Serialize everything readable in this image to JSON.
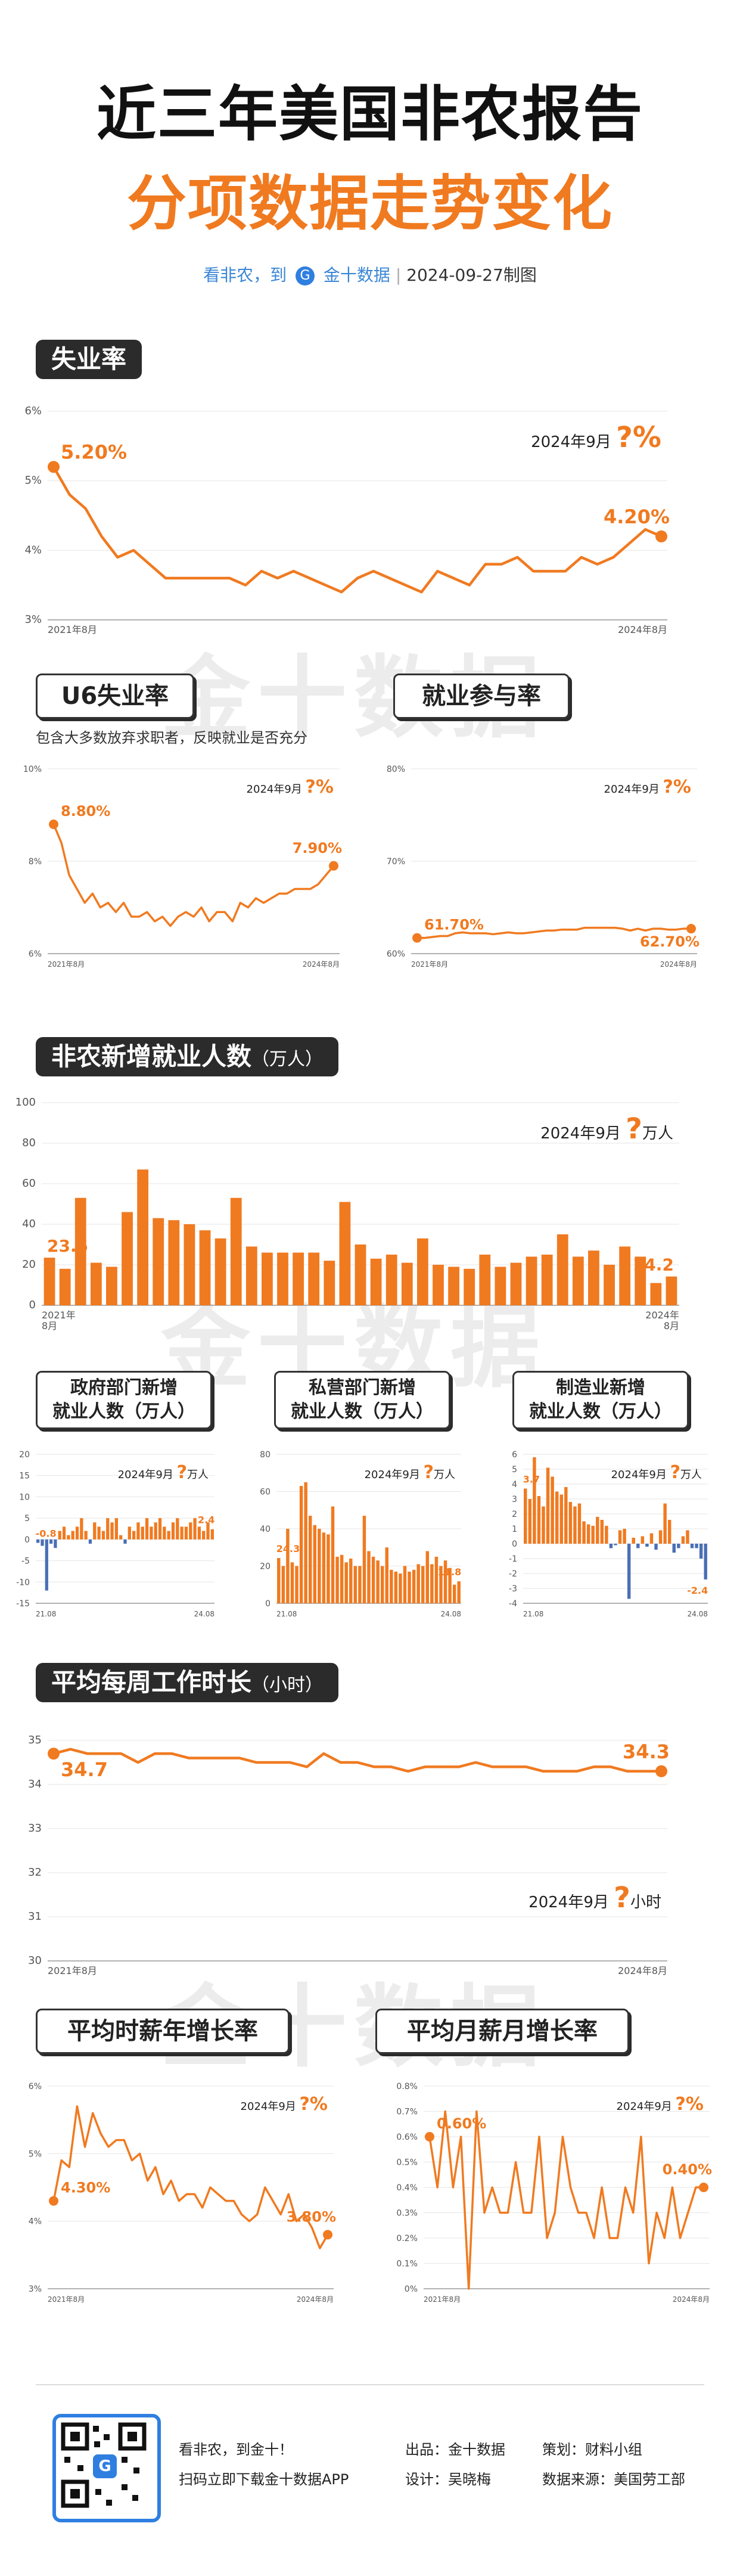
{
  "header": {
    "title_line1": "近三年美国非农报告",
    "title_line2": "分项数据走势变化",
    "sub_left": "看非农，到",
    "sub_brand": "金十数据",
    "sub_date": "2024-09-27制图"
  },
  "watermark": "金十数据",
  "colors": {
    "accent": "#f07a20",
    "blue": "#4a6fb5",
    "dark": "#2b2b2b"
  },
  "sections": {
    "unemployment": "失业率",
    "u6": "U6失业率",
    "u6_note": "包含大多数放弃求职者，反映就业是否充分",
    "participation": "就业参与率",
    "nfp": "非农新增就业人数",
    "nfp_unit": "（万人）",
    "gov": "政府部门新增\n就业人数（万人）",
    "private": "私营部门新增\n就业人数（万人）",
    "manufacturing": "制造业新增\n就业人数（万人）",
    "hours": "平均每周工作时长",
    "hours_unit": "（小时）",
    "wage_yoy": "平均时薪年增长率",
    "wage_mom": "平均月薪月增长率"
  },
  "chart_data": [
    {
      "id": "unemployment",
      "type": "line",
      "ylim": [
        3,
        6
      ],
      "yticks": [
        "6%",
        "5%",
        "4%",
        "3%"
      ],
      "xstart": "2021年8月",
      "xend": "2024年8月",
      "values": [
        5.2,
        4.8,
        4.6,
        4.2,
        3.9,
        4.0,
        3.8,
        3.6,
        3.6,
        3.6,
        3.6,
        3.6,
        3.5,
        3.7,
        3.6,
        3.7,
        3.6,
        3.5,
        3.4,
        3.6,
        3.7,
        3.6,
        3.5,
        3.4,
        3.7,
        3.6,
        3.5,
        3.8,
        3.8,
        3.9,
        3.7,
        3.7,
        3.7,
        3.9,
        3.8,
        3.9,
        4.1,
        4.3,
        4.2
      ],
      "first_label": "5.20%",
      "last_label": "4.20%",
      "forecast_label": "2024年9月",
      "forecast_value": "?%"
    },
    {
      "id": "u6",
      "type": "line",
      "ylim": [
        6,
        10
      ],
      "yticks": [
        "10%",
        "8%",
        "6%"
      ],
      "xstart": "2021年8月",
      "xend": "2024年8月",
      "values": [
        8.8,
        8.4,
        7.7,
        7.4,
        7.1,
        7.3,
        7.0,
        7.1,
        6.9,
        7.1,
        6.8,
        6.8,
        6.9,
        6.7,
        6.8,
        6.6,
        6.8,
        6.9,
        6.8,
        7.0,
        6.7,
        6.9,
        6.9,
        6.7,
        7.1,
        7.0,
        7.2,
        7.1,
        7.2,
        7.3,
        7.3,
        7.4,
        7.4,
        7.4,
        7.5,
        7.7,
        7.9
      ],
      "first_label": "8.80%",
      "last_label": "7.90%",
      "forecast_label": "2024年9月",
      "forecast_value": "?%"
    },
    {
      "id": "participation",
      "type": "line",
      "ylim": [
        60,
        80
      ],
      "yticks": [
        "80%",
        "70%",
        "60%"
      ],
      "xstart": "2021年8月",
      "xend": "2024年8月",
      "values": [
        61.7,
        61.7,
        61.8,
        61.9,
        61.9,
        62.2,
        62.3,
        62.2,
        62.2,
        62.2,
        62.1,
        62.2,
        62.3,
        62.2,
        62.2,
        62.3,
        62.4,
        62.5,
        62.5,
        62.6,
        62.6,
        62.6,
        62.8,
        62.8,
        62.8,
        62.8,
        62.8,
        62.7,
        62.5,
        62.7,
        62.5,
        62.7,
        62.7,
        62.6,
        62.6,
        62.7,
        62.7
      ],
      "first_label": "61.70%",
      "last_label": "62.70%",
      "forecast_label": "2024年9月",
      "forecast_value": "?%"
    },
    {
      "id": "nfp",
      "type": "bar",
      "ylim": [
        0,
        100
      ],
      "yticks": [
        "100",
        "80",
        "60",
        "40",
        "20",
        "0"
      ],
      "xstart": "2021年\n8月",
      "xend": "2024年\n8月",
      "values": [
        23.5,
        18,
        53,
        21,
        19,
        46,
        67,
        43,
        42,
        40,
        37,
        33,
        53,
        29,
        26,
        26,
        26,
        26,
        22,
        51,
        30,
        23,
        25,
        21,
        33,
        20,
        19,
        18,
        25,
        19,
        21,
        24,
        25,
        35,
        24,
        27,
        20,
        29,
        24,
        11,
        14.2
      ],
      "first_label": "23.5",
      "last_label": "14.2",
      "forecast_label": "2024年9月",
      "forecast_value": "?",
      "forecast_unit": "万人"
    },
    {
      "id": "gov",
      "type": "bar",
      "ylim": [
        -15,
        20
      ],
      "yticks": [
        "20",
        "15",
        "10",
        "5",
        "0",
        "-5",
        "-10",
        "-15"
      ],
      "xstart": "21.08",
      "xend": "24.08",
      "values": [
        -0.8,
        -1.5,
        -12,
        -1,
        -2,
        2,
        3,
        1,
        2,
        3,
        5,
        2,
        -1,
        4,
        3,
        2,
        5,
        4,
        5,
        1,
        -1,
        3,
        2,
        4,
        3,
        5,
        3,
        4,
        5,
        3,
        2,
        4,
        5,
        3,
        3,
        4,
        5,
        3,
        2,
        4,
        2.4
      ],
      "first_label": "-0.8",
      "last_label": "2.4",
      "forecast_label": "2024年9月",
      "forecast_value": "?",
      "forecast_unit": "万人"
    },
    {
      "id": "private",
      "type": "bar",
      "ylim": [
        0,
        80
      ],
      "yticks": [
        "80",
        "60",
        "40",
        "20",
        "0"
      ],
      "xstart": "21.08",
      "xend": "24.08",
      "values": [
        24.3,
        20,
        40,
        22,
        20,
        63,
        65,
        47,
        42,
        40,
        38,
        37,
        52,
        25,
        26,
        22,
        24,
        20,
        20,
        47,
        28,
        25,
        23,
        20,
        30,
        18,
        17,
        16,
        20,
        17,
        18,
        21,
        20,
        28,
        21,
        25,
        20,
        23,
        19,
        10,
        11.8
      ],
      "first_label": "24.3",
      "last_label": "11.8",
      "forecast_label": "2024年9月",
      "forecast_value": "?",
      "forecast_unit": "万人"
    },
    {
      "id": "manufacturing",
      "type": "bar",
      "ylim": [
        -4,
        6
      ],
      "yticks": [
        "6",
        "5",
        "4",
        "3",
        "2",
        "1",
        "0",
        "-1",
        "-2",
        "-3",
        "-4"
      ],
      "xstart": "21.08",
      "xend": "24.08",
      "values": [
        3.7,
        3,
        5.8,
        3.2,
        2.5,
        5.1,
        4.5,
        3.5,
        3.3,
        3.8,
        2.8,
        2.5,
        2.7,
        1.5,
        1.3,
        1.2,
        1.8,
        1.6,
        1.2,
        -0.3,
        -0.1,
        0.9,
        1.0,
        -3.7,
        0.4,
        -0.3,
        0.5,
        -0.2,
        0.7,
        -0.4,
        0.9,
        2.7,
        1.6,
        -0.6,
        -0.3,
        0.5,
        0.9,
        -0.3,
        -0.3,
        -1.0,
        -2.4
      ],
      "first_label": "3.7",
      "last_label": "-2.4",
      "forecast_label": "2024年9月",
      "forecast_value": "?",
      "forecast_unit": "万人"
    },
    {
      "id": "hours",
      "type": "line",
      "ylim": [
        30,
        35
      ],
      "yticks": [
        "35",
        "34",
        "33",
        "32",
        "31",
        "30"
      ],
      "xstart": "2021年8月",
      "xend": "2024年8月",
      "values": [
        34.7,
        34.8,
        34.7,
        34.7,
        34.7,
        34.5,
        34.7,
        34.7,
        34.6,
        34.6,
        34.6,
        34.6,
        34.5,
        34.5,
        34.5,
        34.4,
        34.7,
        34.5,
        34.5,
        34.4,
        34.4,
        34.3,
        34.4,
        34.4,
        34.4,
        34.5,
        34.4,
        34.4,
        34.4,
        34.3,
        34.3,
        34.3,
        34.4,
        34.4,
        34.3,
        34.3,
        34.3
      ],
      "first_label": "34.7",
      "last_label": "34.3",
      "forecast_label": "2024年9月",
      "forecast_value": "?",
      "forecast_unit": "小时"
    },
    {
      "id": "wage_yoy",
      "type": "line",
      "ylim": [
        3,
        6
      ],
      "yticks": [
        "6%",
        "5%",
        "4%",
        "3%"
      ],
      "xstart": "2021年8月",
      "xend": "2024年8月",
      "values": [
        4.3,
        4.9,
        4.8,
        5.7,
        5.1,
        5.6,
        5.3,
        5.1,
        5.2,
        5.2,
        4.9,
        5.0,
        4.6,
        4.8,
        4.4,
        4.6,
        4.3,
        4.4,
        4.4,
        4.2,
        4.5,
        4.4,
        4.3,
        4.3,
        4.1,
        4.0,
        4.1,
        4.5,
        4.3,
        4.1,
        4.4,
        4.0,
        4.1,
        3.9,
        3.6,
        3.8
      ],
      "first_label": "4.30%",
      "last_label": "3.80%",
      "forecast_label": "2024年9月",
      "forecast_value": "?%"
    },
    {
      "id": "wage_mom",
      "type": "line",
      "ylim": [
        0,
        0.8
      ],
      "yticks": [
        "0.8%",
        "0.7%",
        "0.6%",
        "0.5%",
        "0.4%",
        "0.3%",
        "0.2%",
        "0.1%",
        "0%"
      ],
      "xstart": "2021年8月",
      "xend": "2024年8月",
      "values": [
        0.6,
        0.4,
        0.7,
        0.4,
        0.6,
        0.0,
        0.7,
        0.3,
        0.4,
        0.3,
        0.3,
        0.5,
        0.3,
        0.3,
        0.6,
        0.2,
        0.3,
        0.6,
        0.4,
        0.3,
        0.3,
        0.2,
        0.4,
        0.2,
        0.2,
        0.4,
        0.3,
        0.6,
        0.1,
        0.3,
        0.2,
        0.4,
        0.2,
        0.3,
        0.4,
        0.4
      ],
      "first_label": "0.60%",
      "last_label": "0.40%",
      "forecast_label": "2024年9月",
      "forecast_value": "?%"
    }
  ],
  "footer": {
    "line1": "看非农，到金十！",
    "line2": "扫码立即下载金十数据APP",
    "producer": "出品：金十数据",
    "planner": "策划：财料小组",
    "designer": "设计：吴晓梅",
    "source": "数据来源：美国劳工部"
  }
}
